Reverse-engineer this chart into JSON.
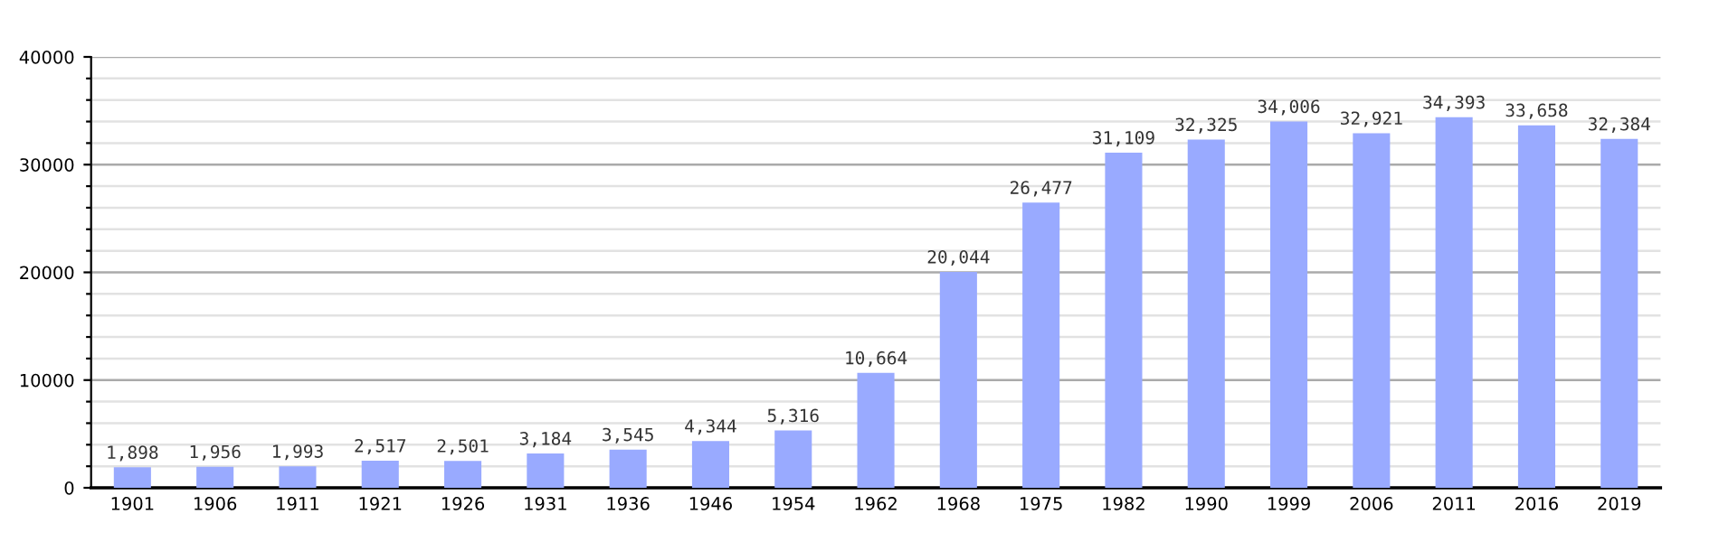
{
  "chart_data": {
    "type": "bar",
    "categories": [
      "1901",
      "1906",
      "1911",
      "1921",
      "1926",
      "1931",
      "1936",
      "1946",
      "1954",
      "1962",
      "1968",
      "1975",
      "1982",
      "1990",
      "1999",
      "2006",
      "2011",
      "2016",
      "2019"
    ],
    "values": [
      1898,
      1956,
      1993,
      2517,
      2501,
      3184,
      3545,
      4344,
      5316,
      10664,
      20044,
      26477,
      31109,
      32325,
      34006,
      32921,
      34393,
      33658,
      32384
    ],
    "value_labels": [
      "1,898",
      "1,956",
      "1,993",
      "2,517",
      "2,501",
      "3,184",
      "3,545",
      "4,344",
      "5,316",
      "10,664",
      "20,044",
      "26,477",
      "31,109",
      "32,325",
      "34,006",
      "32,921",
      "34,393",
      "33,658",
      "32,384"
    ],
    "color": "#99aaff",
    "ylim": [
      0,
      40000
    ],
    "yticks": [
      0,
      {
        "value": 2000,
        "label": null
      },
      {
        "value": 4000,
        "label": null
      },
      {
        "value": 6000,
        "label": null
      },
      {
        "value": 8000,
        "label": null
      },
      10000,
      {
        "value": 12000,
        "label": null
      },
      {
        "value": 14000,
        "label": null
      },
      {
        "value": 16000,
        "label": null
      },
      {
        "value": 18000,
        "label": null
      },
      20000,
      {
        "value": 22000,
        "label": null
      },
      {
        "value": 24000,
        "label": null
      },
      {
        "value": 26000,
        "label": null
      },
      {
        "value": 28000,
        "label": null
      },
      30000,
      {
        "value": 32000,
        "label": null
      },
      {
        "value": 34000,
        "label": null
      },
      {
        "value": 36000,
        "label": null
      },
      {
        "value": 38000,
        "label": null
      },
      40000
    ],
    "grid": "y"
  }
}
